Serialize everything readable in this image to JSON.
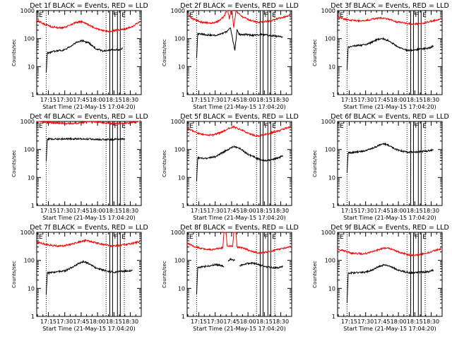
{
  "figure": {
    "background": "#ffffff",
    "axis_color": "#000000",
    "events_color": "#000000",
    "lld_color": "#ff0000"
  },
  "chart_data": [
    {
      "type": "line",
      "title": "Det 1f BLACK = Events, RED = LLD",
      "xlabel": "Start Time (21-May-15 17:04:20)",
      "ylabel": "Counts/sec",
      "x_ticks": [
        "17:15",
        "17:30",
        "17:45",
        "18:00",
        "18:15",
        "18:30"
      ],
      "xlim": [
        "17:04:20",
        "18:40:00"
      ],
      "ylim": [
        1,
        1000
      ],
      "yscale": "log",
      "y_ticks": [
        "1",
        "10",
        "100",
        "1000"
      ],
      "markers": [
        {
          "label": "F",
          "time": "18:12:30"
        },
        {
          "label": "E",
          "time": "18:19:30"
        }
      ],
      "dotted_lines": [
        "17:13:00",
        "18:07:50",
        "18:24:30"
      ],
      "series": [
        {
          "color": "#000000",
          "x": [
            "17:13:00",
            "17:14:00",
            "17:20:00",
            "17:30:00",
            "17:36:00",
            "17:41:00",
            "17:46:00",
            "17:52:00",
            "17:58:00",
            "18:05:00",
            "18:10:00",
            "18:14:00",
            "18:20:00",
            "18:23:00"
          ],
          "y": [
            6,
            30,
            35,
            40,
            55,
            75,
            85,
            70,
            45,
            36,
            38,
            40,
            40,
            45
          ]
        },
        {
          "color": "#ff0000",
          "x": [
            "17:04:20",
            "17:10:00",
            "17:18:00",
            "17:28:00",
            "17:35:00",
            "17:40:00",
            "17:45:00",
            "17:50:00",
            "17:56:00",
            "18:03:00",
            "18:10:00",
            "18:18:00",
            "18:26:00",
            "18:34:00",
            "18:39:00"
          ],
          "y": [
            450,
            350,
            260,
            240,
            300,
            380,
            400,
            340,
            250,
            200,
            180,
            200,
            220,
            300,
            420
          ]
        }
      ]
    },
    {
      "type": "line",
      "title": "Det 2f BLACK = Events, RED = LLD",
      "xlabel": "Start Time (21-May-15 17:04:20)",
      "ylabel": "Counts/sec",
      "x_ticks": [
        "17:15",
        "17:30",
        "17:45",
        "18:00",
        "18:15",
        "18:30"
      ],
      "xlim": [
        "17:04:20",
        "18:40:00"
      ],
      "ylim": [
        1,
        1000
      ],
      "yscale": "log",
      "y_ticks": [
        "1",
        "10",
        "100",
        "1000"
      ],
      "markers": [
        {
          "label": "F",
          "time": "18:12:30"
        },
        {
          "label": "E",
          "time": "18:19:30"
        }
      ],
      "dotted_lines": [
        "17:13:00",
        "18:07:50",
        "18:24:30"
      ],
      "series": [
        {
          "color": "#000000",
          "x": [
            "17:13:00",
            "17:14:00",
            "17:20:00",
            "17:30:00",
            "17:36:00",
            "17:41:00",
            "17:44:00",
            "17:46:00",
            "17:48:00",
            "17:50:00",
            "17:52:00",
            "17:58:00",
            "18:05:00",
            "18:12:00",
            "18:20:00",
            "18:28:00",
            "18:32:00"
          ],
          "y": [
            20,
            150,
            140,
            130,
            150,
            180,
            250,
            90,
            40,
            200,
            140,
            140,
            130,
            140,
            130,
            120,
            115
          ]
        },
        {
          "color": "#ff0000",
          "x": [
            "17:04:20",
            "17:10:00",
            "17:18:00",
            "17:26:00",
            "17:32:00",
            "17:38:00",
            "17:41:00",
            "17:43:00",
            "17:45:00",
            "17:47:00",
            "17:49:00",
            "17:51:00",
            "17:55:00",
            "18:02:00",
            "18:10:00",
            "18:20:00",
            "18:30:00",
            "18:39:00"
          ],
          "y": [
            700,
            500,
            380,
            360,
            400,
            600,
            1200,
            500,
            1400,
            250,
            1000,
            800,
            600,
            450,
            380,
            430,
            550,
            700
          ]
        }
      ]
    },
    {
      "type": "line",
      "title": "Det 3f BLACK = Events, RED = LLD",
      "xlabel": "Start Time (21-May-15 17:04:20)",
      "ylabel": "Counts/sec",
      "x_ticks": [
        "17:15",
        "17:30",
        "17:45",
        "18:00",
        "18:15",
        "18:30"
      ],
      "xlim": [
        "17:04:20",
        "18:40:00"
      ],
      "ylim": [
        1,
        1000
      ],
      "yscale": "log",
      "y_ticks": [
        "1",
        "10",
        "100",
        "1000"
      ],
      "markers": [
        {
          "label": "F",
          "time": "18:12:30"
        },
        {
          "label": "E",
          "time": "18:19:30"
        }
      ],
      "dotted_lines": [
        "17:13:00",
        "18:07:50",
        "18:24:30"
      ],
      "series": [
        {
          "color": "#000000",
          "x": [
            "17:13:00",
            "17:14:00",
            "17:20:00",
            "17:30:00",
            "17:36:00",
            "17:41:00",
            "17:46:00",
            "17:52:00",
            "17:58:00",
            "18:05:00",
            "18:10:00",
            "18:14:00",
            "18:20:00",
            "18:28:00",
            "18:32:00"
          ],
          "y": [
            8,
            50,
            55,
            60,
            75,
            95,
            100,
            80,
            55,
            40,
            38,
            40,
            42,
            45,
            55
          ]
        },
        {
          "color": "#ff0000",
          "x": [
            "17:04:20",
            "17:10:00",
            "17:18:00",
            "17:28:00",
            "17:36:00",
            "17:44:00",
            "17:52:00",
            "17:58:00",
            "18:06:00",
            "18:14:00",
            "18:22:00",
            "18:30:00",
            "18:39:00"
          ],
          "y": [
            600,
            500,
            450,
            420,
            500,
            550,
            480,
            400,
            360,
            330,
            350,
            420,
            500
          ]
        }
      ]
    },
    {
      "type": "line",
      "title": "Det 4f BLACK = Events, RED = LLD",
      "xlabel": "Start Time (21-May-15 17:04:20)",
      "ylabel": "Counts/sec",
      "x_ticks": [
        "17:15",
        "17:30",
        "17:45",
        "18:00",
        "18:15",
        "18:30"
      ],
      "xlim": [
        "17:04:20",
        "18:40:00"
      ],
      "ylim": [
        1,
        1000
      ],
      "yscale": "log",
      "y_ticks": [
        "1",
        "10",
        "100",
        "1000"
      ],
      "markers": [
        {
          "label": "F",
          "time": "18:12:30"
        },
        {
          "label": "E",
          "time": "18:19:30"
        }
      ],
      "dotted_lines": [
        "17:13:00",
        "18:07:50",
        "18:24:30"
      ],
      "series": [
        {
          "color": "#000000",
          "x": [
            "17:13:00",
            "17:14:00",
            "17:20:00",
            "17:30:00",
            "17:40:00",
            "17:50:00",
            "18:00:00",
            "18:10:00",
            "18:20:00",
            "18:25:00"
          ],
          "y": [
            40,
            230,
            240,
            240,
            240,
            235,
            230,
            225,
            230,
            240
          ]
        },
        {
          "color": "#ff0000",
          "x": [
            "17:04:20",
            "17:12:00",
            "17:20:00",
            "17:30:00",
            "17:40:00",
            "17:48:00",
            "17:56:00",
            "18:05:00",
            "18:15:00",
            "18:25:00",
            "18:34:00",
            "18:39:00"
          ],
          "y": [
            1100,
            950,
            900,
            850,
            850,
            950,
            1000,
            900,
            820,
            850,
            950,
            1100
          ]
        }
      ]
    },
    {
      "type": "line",
      "title": "Det 5f BLACK = Events, RED = LLD",
      "xlabel": "Start Time (21-May-15 17:04:20)",
      "ylabel": "Counts/sec",
      "x_ticks": [
        "17:15",
        "17:30",
        "17:45",
        "18:00",
        "18:15",
        "18:30"
      ],
      "xlim": [
        "17:04:20",
        "18:40:00"
      ],
      "ylim": [
        1,
        1000
      ],
      "yscale": "log",
      "y_ticks": [
        "1",
        "10",
        "100",
        "1000"
      ],
      "markers": [
        {
          "label": "F",
          "time": "18:12:30"
        },
        {
          "label": "E",
          "time": "18:19:30"
        }
      ],
      "dotted_lines": [
        "17:13:00",
        "18:07:50",
        "18:24:30"
      ],
      "series": [
        {
          "color": "#000000",
          "x": [
            "17:13:00",
            "17:14:00",
            "17:20:00",
            "17:30:00",
            "17:36:00",
            "17:42:00",
            "17:47:00",
            "17:53:00",
            "17:58:00",
            "18:05:00",
            "18:10:00",
            "18:15:00",
            "18:20:00",
            "18:28:00",
            "18:32:00"
          ],
          "y": [
            8,
            50,
            48,
            55,
            75,
            100,
            130,
            110,
            75,
            55,
            45,
            40,
            42,
            50,
            60
          ]
        },
        {
          "color": "#ff0000",
          "x": [
            "17:04:20",
            "17:10:00",
            "17:18:00",
            "17:28:00",
            "17:35:00",
            "17:42:00",
            "17:47:00",
            "17:53:00",
            "18:00:00",
            "18:08:00",
            "18:16:00",
            "18:24:00",
            "18:32:00",
            "18:39:00"
          ],
          "y": [
            600,
            450,
            340,
            330,
            400,
            550,
            650,
            520,
            380,
            300,
            350,
            420,
            520,
            650
          ]
        }
      ]
    },
    {
      "type": "line",
      "title": "Det 6f BLACK = Events, RED = LLD",
      "xlabel": "Start Time (21-May-15 17:04:20)",
      "ylabel": "Counts/sec",
      "x_ticks": [
        "17:15",
        "17:30",
        "17:45",
        "18:00",
        "18:15",
        "18:30"
      ],
      "xlim": [
        "17:04:20",
        "18:40:00"
      ],
      "ylim": [
        1,
        1000
      ],
      "yscale": "log",
      "y_ticks": [
        "1",
        "10",
        "100",
        "1000"
      ],
      "markers": [
        {
          "label": "F",
          "time": "18:12:30"
        },
        {
          "label": "E",
          "time": "18:19:30"
        }
      ],
      "dotted_lines": [
        "17:13:00",
        "18:07:50",
        "18:24:30"
      ],
      "series": [
        {
          "color": "#000000",
          "x": [
            "17:13:00",
            "17:14:00",
            "17:20:00",
            "17:30:00",
            "17:36:00",
            "17:42:00",
            "17:47:00",
            "17:53:00",
            "17:58:00",
            "18:05:00",
            "18:10:00",
            "18:16:00",
            "18:22:00",
            "18:28:00",
            "18:32:00"
          ],
          "y": [
            15,
            75,
            80,
            90,
            110,
            140,
            160,
            130,
            100,
            85,
            80,
            82,
            85,
            90,
            100
          ]
        }
      ]
    },
    {
      "type": "line",
      "title": "Det 7f BLACK = Events, RED = LLD",
      "xlabel": "Start Time (21-May-15 17:04:20)",
      "ylabel": "Counts/sec",
      "x_ticks": [
        "17:15",
        "17:30",
        "17:45",
        "18:00",
        "18:15",
        "18:30"
      ],
      "xlim": [
        "17:04:20",
        "18:40:00"
      ],
      "ylim": [
        1,
        1000
      ],
      "yscale": "log",
      "y_ticks": [
        "1",
        "10",
        "100",
        "1000"
      ],
      "markers": [
        {
          "label": "F",
          "time": "18:12:30"
        },
        {
          "label": "E",
          "time": "18:19:30"
        }
      ],
      "dotted_lines": [
        "17:13:00",
        "18:07:50",
        "18:24:30"
      ],
      "series": [
        {
          "color": "#000000",
          "x": [
            "17:13:00",
            "17:14:00",
            "17:20:00",
            "17:30:00",
            "17:36:00",
            "17:42:00",
            "17:47:00",
            "17:53:00",
            "17:58:00",
            "18:05:00",
            "18:10:00",
            "18:15:00",
            "18:20:00",
            "18:28:00",
            "18:32:00"
          ],
          "y": [
            6,
            35,
            38,
            42,
            55,
            75,
            90,
            75,
            55,
            45,
            40,
            38,
            40,
            42,
            45
          ]
        },
        {
          "color": "#ff0000",
          "x": [
            "17:04:20",
            "17:10:00",
            "17:18:00",
            "17:28:00",
            "17:36:00",
            "17:44:00",
            "17:50:00",
            "17:56:00",
            "18:04:00",
            "18:12:00",
            "18:20:00",
            "18:28:00",
            "18:34:00",
            "18:39:00"
          ],
          "y": [
            450,
            400,
            340,
            320,
            380,
            460,
            520,
            450,
            380,
            330,
            340,
            380,
            420,
            480
          ]
        }
      ]
    },
    {
      "type": "line",
      "title": "Det 8f BLACK = Events, RED = LLD",
      "xlabel": "Start Time (21-May-15 17:04:20)",
      "ylabel": "Counts/sec",
      "x_ticks": [
        "17:15",
        "17:30",
        "17:45",
        "18:00",
        "18:15",
        "18:30"
      ],
      "xlim": [
        "17:04:20",
        "18:40:00"
      ],
      "ylim": [
        1,
        1000
      ],
      "yscale": "log",
      "y_ticks": [
        "1",
        "10",
        "100",
        "1000"
      ],
      "markers": [
        {
          "label": "F",
          "time": "18:12:30"
        },
        {
          "label": "E",
          "time": "18:19:30"
        }
      ],
      "dotted_lines": [
        "17:13:00",
        "18:07:50",
        "18:24:30"
      ],
      "series": [
        {
          "color": "#000000",
          "x": [
            "17:13:00",
            "17:14:00",
            "17:20:00",
            "17:30:00",
            "17:36:00",
            "17:38:00"
          ],
          "y": [
            6,
            55,
            60,
            70,
            65,
            60
          ]
        },
        {
          "color": "#000000",
          "x": [
            "17:42:00",
            "17:44:00",
            "17:46:00",
            "17:48:00"
          ],
          "y": [
            100,
            110,
            105,
            100
          ]
        },
        {
          "color": "#000000",
          "x": [
            "17:52:00",
            "17:58:00",
            "18:04:00",
            "18:10:00",
            "18:16:00",
            "18:22:00",
            "18:28:00",
            "18:32:00"
          ],
          "y": [
            65,
            75,
            80,
            70,
            60,
            55,
            55,
            60
          ]
        },
        {
          "color": "#ff0000",
          "x": [
            "17:04:20",
            "17:10:00",
            "17:18:00",
            "17:26:00",
            "17:32:00",
            "17:37:00",
            "17:38:00",
            "17:40:00",
            "17:41:00",
            "17:46:00",
            "17:47:00",
            "17:49:00",
            "17:50:00",
            "17:55:00",
            "18:02:00",
            "18:10:00",
            "18:18:00",
            "18:26:00",
            "18:34:00",
            "18:39:00"
          ],
          "y": [
            400,
            320,
            260,
            240,
            260,
            280,
            1000,
            1000,
            320,
            320,
            1000,
            1000,
            300,
            280,
            220,
            180,
            200,
            240,
            280,
            320
          ]
        }
      ]
    },
    {
      "type": "line",
      "title": "Det 9f BLACK = Events, RED = LLD",
      "xlabel": "Start Time (21-May-15 17:04:20)",
      "ylabel": "Counts/sec",
      "x_ticks": [
        "17:15",
        "17:30",
        "17:45",
        "18:00",
        "18:15",
        "18:30"
      ],
      "xlim": [
        "17:04:20",
        "18:40:00"
      ],
      "ylim": [
        1,
        1000
      ],
      "yscale": "log",
      "y_ticks": [
        "1",
        "10",
        "100",
        "1000"
      ],
      "markers": [
        {
          "label": "F",
          "time": "18:12:30"
        },
        {
          "label": "E",
          "time": "18:19:30"
        }
      ],
      "dotted_lines": [
        "17:13:00",
        "18:07:50",
        "18:24:30"
      ],
      "series": [
        {
          "color": "#000000",
          "x": [
            "17:13:00",
            "17:14:00",
            "17:20:00",
            "17:30:00",
            "17:36:00",
            "17:42:00",
            "17:47:00",
            "17:53:00",
            "17:58:00",
            "18:05:00",
            "18:10:00",
            "18:16:00",
            "18:22:00",
            "18:28:00",
            "18:32:00"
          ],
          "y": [
            3,
            35,
            36,
            38,
            45,
            60,
            70,
            60,
            48,
            40,
            36,
            36,
            38,
            40,
            45
          ]
        },
        {
          "color": "#ff0000",
          "x": [
            "17:04:20",
            "17:10:00",
            "17:18:00",
            "17:28:00",
            "17:36:00",
            "17:44:00",
            "17:50:00",
            "17:56:00",
            "18:04:00",
            "18:12:00",
            "18:20:00",
            "18:28:00",
            "18:34:00",
            "18:39:00"
          ],
          "y": [
            250,
            220,
            180,
            170,
            200,
            260,
            280,
            230,
            180,
            150,
            160,
            190,
            230,
            260
          ]
        }
      ]
    }
  ]
}
